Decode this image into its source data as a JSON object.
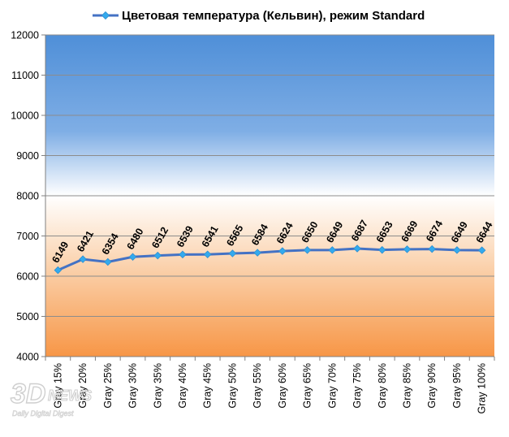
{
  "chart_data": {
    "type": "line",
    "title": "",
    "xlabel": "",
    "ylabel": "",
    "ylim": [
      4000,
      12000
    ],
    "yticks": [
      4000,
      5000,
      6000,
      7000,
      8000,
      9000,
      10000,
      11000,
      12000
    ],
    "grid": true,
    "legend": "top",
    "categories": [
      "Gray 15%",
      "Gray 20%",
      "Gray 25%",
      "Gray 30%",
      "Gray 35%",
      "Gray 40%",
      "Gray 45%",
      "Gray 50%",
      "Gray 55%",
      "Gray 60%",
      "Gray 65%",
      "Gray 70%",
      "Gray 75%",
      "Gray 80%",
      "Gray 85%",
      "Gray 90%",
      "Gray 95%",
      "Gray 100%"
    ],
    "series": [
      {
        "name": "Цветовая температура (Кельвин), режим Standard",
        "values": [
          6149,
          6421,
          6354,
          6480,
          6512,
          6539,
          6541,
          6565,
          6584,
          6624,
          6650,
          6649,
          6687,
          6653,
          6669,
          6674,
          6649,
          6644
        ],
        "color": "#4472C4",
        "marker_color": "#33AAEE"
      }
    ],
    "background": {
      "top_color": "#4F8FD8",
      "mid_color": "#FFFFFF",
      "bottom_color": "#F79646"
    }
  },
  "watermark": {
    "logo_big": "3D",
    "logo_news": "NEWS",
    "logo_sub": "Daily Digital Digest"
  }
}
